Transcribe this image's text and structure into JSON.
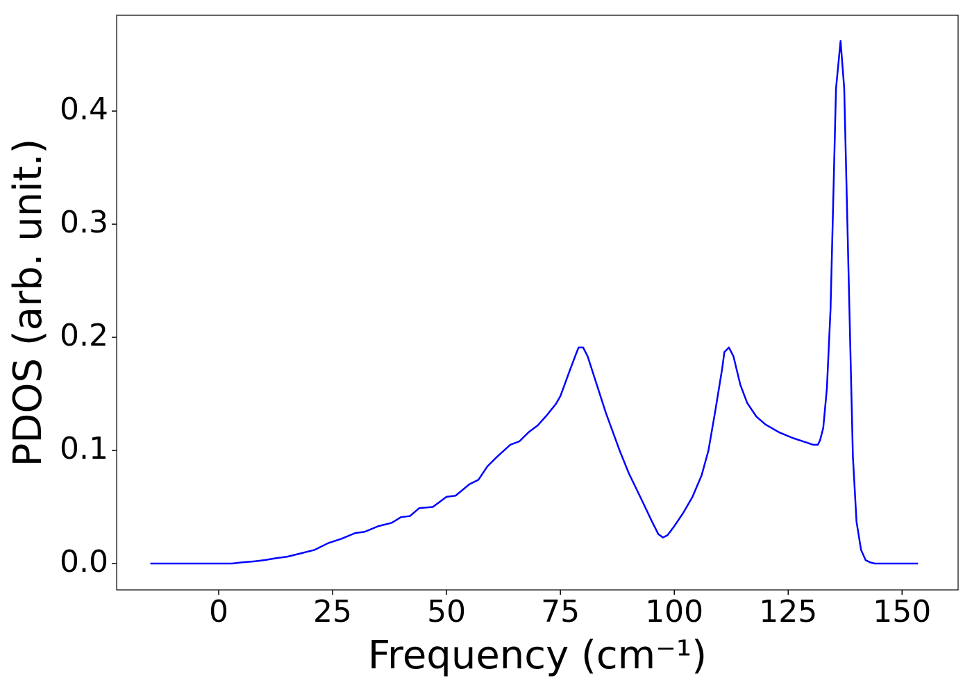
{
  "chart_data": {
    "type": "line",
    "x_label": "Frequency (cm⁻¹)",
    "y_label": "PDOS (arb. unit.)",
    "x": [
      -15,
      -10,
      -5,
      0,
      3,
      5,
      8,
      10,
      13,
      15,
      18,
      21,
      24,
      27,
      30,
      32,
      35,
      38,
      40,
      42,
      44,
      47,
      50,
      52,
      55,
      57,
      59,
      61,
      64,
      66,
      68,
      70,
      72,
      74,
      75,
      77,
      78.5,
      79,
      80,
      81,
      83,
      85,
      88,
      90,
      93,
      95,
      96.5,
      97.5,
      98.5,
      100,
      102,
      104,
      106,
      107.5,
      109,
      110.5,
      111,
      112,
      113,
      114.5,
      116,
      118,
      120,
      123,
      126,
      129,
      130.5,
      131.5,
      132,
      132.7,
      133.5,
      134.3,
      135.5,
      136.5,
      137.3,
      138,
      139.2,
      140,
      141,
      142,
      143,
      144,
      148,
      153.5
    ],
    "series": [
      {
        "color": "#0000ff",
        "values": [
          0,
          0,
          0,
          0,
          0,
          0.001,
          0.002,
          0.003,
          0.005,
          0.006,
          0.009,
          0.012,
          0.018,
          0.022,
          0.027,
          0.028,
          0.033,
          0.036,
          0.041,
          0.042,
          0.049,
          0.05,
          0.059,
          0.06,
          0.07,
          0.074,
          0.086,
          0.094,
          0.105,
          0.108,
          0.116,
          0.122,
          0.131,
          0.141,
          0.148,
          0.17,
          0.186,
          0.191,
          0.191,
          0.183,
          0.158,
          0.133,
          0.1,
          0.08,
          0.055,
          0.038,
          0.026,
          0.023,
          0.025,
          0.033,
          0.045,
          0.059,
          0.078,
          0.1,
          0.135,
          0.172,
          0.187,
          0.191,
          0.183,
          0.158,
          0.142,
          0.13,
          0.123,
          0.116,
          0.111,
          0.107,
          0.105,
          0.105,
          0.109,
          0.12,
          0.155,
          0.225,
          0.42,
          0.462,
          0.42,
          0.3,
          0.095,
          0.037,
          0.012,
          0.003,
          0.001,
          0,
          0,
          0
        ]
      }
    ],
    "xlim": [
      -22.4,
      162.3
    ],
    "ylim": [
      -0.0233,
      0.4847
    ],
    "xticks": [
      0,
      25,
      50,
      75,
      100,
      125,
      150
    ],
    "yticks": [
      {
        "value": 0,
        "label": "0.0"
      },
      {
        "value": 0.1,
        "label": "0.1"
      },
      {
        "value": 0.2,
        "label": "0.2"
      },
      {
        "value": 0.3,
        "label": "0.3"
      },
      {
        "value": 0.4,
        "label": "0.4"
      }
    ],
    "grid": false
  }
}
